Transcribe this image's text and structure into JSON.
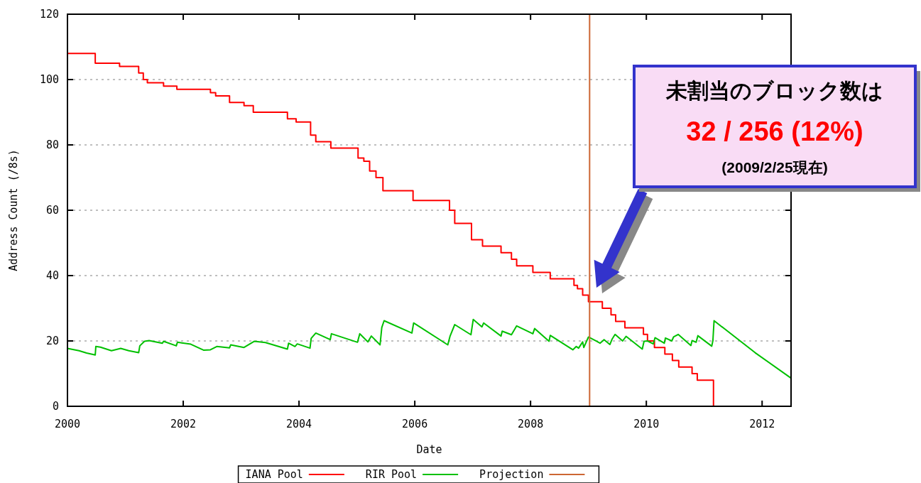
{
  "chart_data": {
    "type": "line",
    "xlabel": "Date",
    "ylabel": "Address Count (/8s)",
    "xlim": [
      2000,
      2012.5
    ],
    "ylim": [
      0,
      120
    ],
    "xticks": [
      2000,
      2002,
      2004,
      2006,
      2008,
      2010,
      2012
    ],
    "yticks": [
      0,
      20,
      40,
      60,
      80,
      100,
      120
    ],
    "grid": "y",
    "legend": "bottom",
    "series": [
      {
        "name": "IANA Pool",
        "type": "step",
        "color": "#ff0000",
        "x": [
          2000,
          2000.48,
          2000.9,
          2001.23,
          2001.31,
          2001.38,
          2001.66,
          2001.89,
          2002.47,
          2002.56,
          2002.8,
          2003.05,
          2003.21,
          2003.8,
          2003.95,
          2004.2,
          2004.29,
          2004.55,
          2005.02,
          2005.12,
          2005.22,
          2005.33,
          2005.45,
          2005.97,
          2006.6,
          2006.69,
          2006.98,
          2007.17,
          2007.49,
          2007.67,
          2007.76,
          2008.04,
          2008.34,
          2008.75,
          2008.81,
          2008.9,
          2009,
          2009.24,
          2009.39,
          2009.47,
          2009.63,
          2009.95,
          2010.02,
          2010.14,
          2010.32,
          2010.45,
          2010.56,
          2010.79,
          2010.88,
          2011.16
        ],
        "values": [
          108,
          105,
          104,
          102,
          100,
          99,
          98,
          97,
          96,
          95,
          93,
          92,
          90,
          88,
          87,
          83,
          81,
          79,
          76,
          75,
          72,
          70,
          66,
          63,
          60,
          56,
          51,
          49,
          47,
          45,
          43,
          41,
          39,
          37,
          36,
          34,
          32,
          30,
          28,
          26,
          24,
          22,
          20,
          18,
          16,
          14,
          12,
          10,
          8,
          0
        ]
      },
      {
        "name": "RIR Pool",
        "type": "line",
        "color": "#00c000",
        "x": [
          2000,
          2000.2,
          2000.33,
          2000.48,
          2000.49,
          2000.57,
          2000.76,
          2000.92,
          2001.06,
          2001.23,
          2001.25,
          2001.33,
          2001.41,
          2001.64,
          2001.66,
          2001.88,
          2001.9,
          2002.13,
          2002.35,
          2002.47,
          2002.58,
          2002.8,
          2002.82,
          2003.05,
          2003.23,
          2003.42,
          2003.8,
          2003.82,
          2003.93,
          2003.97,
          2004.19,
          2004.21,
          2004.29,
          2004.54,
          2004.56,
          2005.01,
          2005.05,
          2005.19,
          2005.25,
          2005.4,
          2005.43,
          2005.47,
          2005.95,
          2005.98,
          2006.57,
          2006.61,
          2006.69,
          2006.97,
          2007.01,
          2007.16,
          2007.19,
          2007.49,
          2007.51,
          2007.67,
          2007.76,
          2008.04,
          2008.07,
          2008.32,
          2008.34,
          2008.73,
          2008.79,
          2008.83,
          2008.9,
          2008.92,
          2009,
          2009.14,
          2009.2,
          2009.27,
          2009.37,
          2009.41,
          2009.46,
          2009.59,
          2009.65,
          2009.93,
          2009.96,
          2010.02,
          2010.12,
          2010.15,
          2010.31,
          2010.33,
          2010.44,
          2010.47,
          2010.55,
          2010.77,
          2010.79,
          2010.86,
          2010.89,
          2011.13,
          2011.15,
          2011.17,
          2011.88,
          2012.5
        ],
        "values": [
          17.7,
          17,
          16.3,
          15.7,
          18.3,
          18.1,
          17,
          17.7,
          17,
          16.4,
          18.5,
          19.9,
          20.1,
          19.3,
          19.9,
          18.5,
          19.6,
          19,
          17.2,
          17.3,
          18.3,
          17.9,
          18.8,
          18,
          19.9,
          19.5,
          17.5,
          19.3,
          18.3,
          19.1,
          17.8,
          20.8,
          22.4,
          20.4,
          22.2,
          19.6,
          22.2,
          19.7,
          21.5,
          18.8,
          24.1,
          26.2,
          22.4,
          25.5,
          18.8,
          21.5,
          25,
          21.9,
          26.6,
          24.3,
          25.5,
          21.5,
          23,
          21.9,
          24.6,
          22.2,
          23.8,
          19.9,
          21.7,
          17.3,
          18.3,
          17.8,
          19.7,
          18,
          21.2,
          19.9,
          19.3,
          20.4,
          18.9,
          20.6,
          22,
          20,
          21.4,
          17.5,
          19.9,
          20,
          19.1,
          21,
          19.3,
          20.9,
          20,
          21.2,
          22,
          18.6,
          20.1,
          19.6,
          21.6,
          18.4,
          20.1,
          26.2,
          16.4,
          8.6
        ]
      },
      {
        "name": "Projection",
        "type": "line",
        "color": "#cc6633",
        "x": [
          2009.02,
          2009.02
        ],
        "values": [
          0,
          120
        ]
      }
    ],
    "annotations": [
      "未割当のブロック数は",
      "32 / 256 (12%)",
      "(2009/2/25現在)"
    ]
  }
}
